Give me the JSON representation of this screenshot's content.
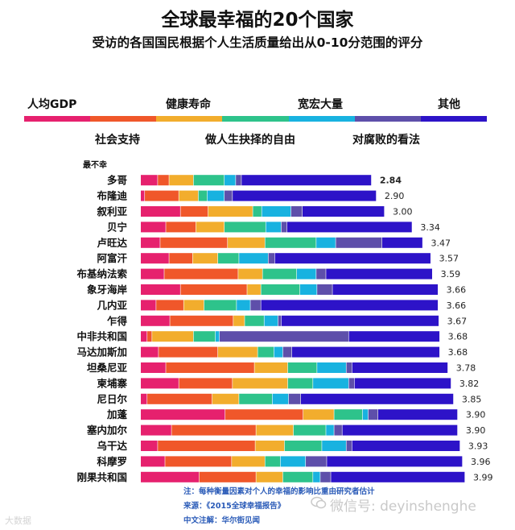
{
  "header": {
    "title": "全球最幸福的20个国家",
    "subtitle": "受访的各国国民根据个人生活质量给出从0-10分范围的评分"
  },
  "legend": {
    "top_row": [
      "人均GDP",
      "健康寿命",
      "宽宏大量",
      "其他"
    ],
    "bottom_row": [
      "社会支持",
      "做人生抉择的自由",
      "对腐败的看法"
    ]
  },
  "least_happy_label": "最不幸",
  "chart_data": {
    "type": "bar",
    "stacked": true,
    "orientation": "horizontal",
    "title": "全球最幸福的20个国家",
    "subtitle": "受访的各国国民根据个人生活质量给出从0-10分范围的评分",
    "segments": [
      "人均GDP",
      "社会支持",
      "健康寿命",
      "做人生抉择的自由",
      "宽宏大量",
      "对腐败的看法",
      "其他"
    ],
    "colors": [
      "#e6216e",
      "#f0572a",
      "#f2ad2d",
      "#2ec38b",
      "#18b2e0",
      "#5e4faa",
      "#2d13c8"
    ],
    "categories": [
      "多哥",
      "布隆迪",
      "叙利亚",
      "贝宁",
      "卢旺达",
      "阿富汗",
      "布基纳法索",
      "象牙海岸",
      "几内亚",
      "乍得",
      "中非共和国",
      "马达加斯加",
      "坦桑尼亚",
      "柬埔寨",
      "尼日尔",
      "加蓬",
      "塞内加尔",
      "乌干达",
      "科摩罗",
      "刚果共和国"
    ],
    "totals": [
      "2.84",
      "2.90",
      "3.00",
      "3.34",
      "3.47",
      "3.57",
      "3.59",
      "3.66",
      "3.66",
      "3.67",
      "3.68",
      "3.68",
      "3.78",
      "3.82",
      "3.85",
      "3.90",
      "3.90",
      "3.93",
      "3.96",
      "3.99"
    ],
    "total_values": [
      2.84,
      2.9,
      3.0,
      3.34,
      3.47,
      3.57,
      3.59,
      3.66,
      3.66,
      3.67,
      3.68,
      3.68,
      3.78,
      3.82,
      3.85,
      3.9,
      3.9,
      3.93,
      3.96,
      3.99
    ],
    "breakdown": [
      [
        0.21,
        0.14,
        0.3,
        0.38,
        0.14,
        0.07,
        1.6
      ],
      [
        0.05,
        0.42,
        0.24,
        0.11,
        0.21,
        0.1,
        1.77
      ],
      [
        0.49,
        0.34,
        0.55,
        0.11,
        0.36,
        0.14,
        1.01
      ],
      [
        0.31,
        0.37,
        0.35,
        0.51,
        0.19,
        0.07,
        1.54
      ],
      [
        0.24,
        0.83,
        0.46,
        0.63,
        0.24,
        0.57,
        0.5
      ],
      [
        0.35,
        0.29,
        0.31,
        0.26,
        0.36,
        0.08,
        1.92
      ],
      [
        0.29,
        0.91,
        0.3,
        0.42,
        0.24,
        0.12,
        1.31
      ],
      [
        0.49,
        0.82,
        0.17,
        0.48,
        0.21,
        0.19,
        1.3
      ],
      [
        0.19,
        0.34,
        0.25,
        0.4,
        0.17,
        0.13,
        2.18
      ],
      [
        0.36,
        0.78,
        0.14,
        0.24,
        0.17,
        0.04,
        1.94
      ],
      [
        0.08,
        0.06,
        0.51,
        0.27,
        0.05,
        1.59,
        1.12
      ],
      [
        0.22,
        0.73,
        0.49,
        0.2,
        0.11,
        0.11,
        1.82
      ],
      [
        0.31,
        1.09,
        0.41,
        0.36,
        0.36,
        0.07,
        1.18
      ],
      [
        0.47,
        0.66,
        0.68,
        0.31,
        0.44,
        0.07,
        1.19
      ],
      [
        0.08,
        0.8,
        0.33,
        0.41,
        0.2,
        0.15,
        1.88
      ],
      [
        1.04,
        0.96,
        0.38,
        0.35,
        0.07,
        0.12,
        0.98
      ],
      [
        0.38,
        1.04,
        0.46,
        0.4,
        0.1,
        0.1,
        1.42
      ],
      [
        0.21,
        1.2,
        0.36,
        0.46,
        0.3,
        0.07,
        1.33
      ],
      [
        0.3,
        0.82,
        0.41,
        0.19,
        0.31,
        0.26,
        1.67
      ],
      [
        0.72,
        0.7,
        0.33,
        0.37,
        0.09,
        0.13,
        1.65
      ]
    ],
    "xlim": [
      0,
      4.4
    ],
    "grid": false,
    "legend_position": "top"
  },
  "notes": {
    "note_line": "注：每种衡量因素对个人的幸福的影响比重由研究者估计",
    "source_line": "来源：《2015全球幸福报告》",
    "translation_line": "中文注解：华尔街见闻"
  },
  "watermark": {
    "wechat_text": "微信号: deyinshenghe",
    "corner_text": "大数据"
  }
}
